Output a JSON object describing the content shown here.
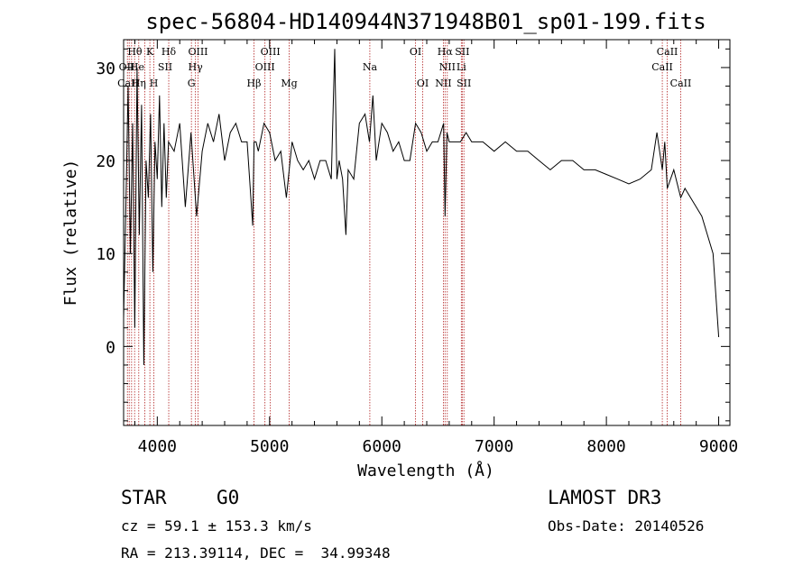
{
  "chart_data": {
    "type": "line",
    "title": "spec-56804-HD140944N371948B01_sp01-199.fits",
    "xlabel": "Wavelength (Å)",
    "ylabel": "Flux (relative)",
    "xlim": [
      3700,
      9100
    ],
    "ylim": [
      -8.5,
      33
    ],
    "xticks": [
      4000,
      5000,
      6000,
      7000,
      8000,
      9000
    ],
    "yticks": [
      0,
      10,
      20,
      30
    ],
    "yticklabels": [
      "0",
      "10",
      "20",
      "30"
    ],
    "grid": false,
    "series": [
      {
        "name": "flux",
        "x": [
          3700,
          3720,
          3740,
          3760,
          3780,
          3800,
          3820,
          3840,
          3860,
          3880,
          3900,
          3920,
          3940,
          3960,
          3980,
          4000,
          4020,
          4040,
          4060,
          4080,
          4100,
          4150,
          4200,
          4250,
          4300,
          4350,
          4400,
          4450,
          4500,
          4550,
          4600,
          4650,
          4700,
          4750,
          4800,
          4850,
          4862,
          4880,
          4900,
          4950,
          5000,
          5050,
          5100,
          5150,
          5200,
          5250,
          5300,
          5350,
          5400,
          5450,
          5500,
          5550,
          5580,
          5600,
          5620,
          5650,
          5680,
          5700,
          5750,
          5800,
          5850,
          5890,
          5920,
          5950,
          6000,
          6050,
          6100,
          6150,
          6200,
          6250,
          6300,
          6350,
          6400,
          6450,
          6500,
          6550,
          6563,
          6580,
          6600,
          6650,
          6700,
          6750,
          6800,
          6900,
          7000,
          7100,
          7200,
          7300,
          7400,
          7500,
          7600,
          7700,
          7800,
          7900,
          8000,
          8100,
          8200,
          8300,
          8400,
          8450,
          8498,
          8520,
          8542,
          8600,
          8662,
          8700,
          8750,
          8800,
          8850,
          8900,
          8950,
          9000
        ],
        "y": [
          3,
          15,
          28,
          10,
          24,
          2,
          30,
          12,
          26,
          -2,
          20,
          16,
          25,
          8,
          22,
          18,
          27,
          15,
          24,
          16,
          22,
          21,
          24,
          15,
          23,
          14,
          21,
          24,
          22,
          25,
          20,
          23,
          24,
          22,
          22,
          13,
          22,
          22,
          21,
          24,
          23,
          20,
          21,
          16,
          22,
          20,
          19,
          20,
          18,
          20,
          20,
          18,
          32,
          18,
          20,
          18,
          12,
          19,
          18,
          24,
          25,
          22,
          27,
          20,
          24,
          23,
          21,
          22,
          20,
          20,
          24,
          23,
          21,
          22,
          22,
          24,
          14,
          23,
          22,
          22,
          22,
          23,
          22,
          22,
          21,
          22,
          21,
          21,
          20,
          19,
          20,
          20,
          19,
          19,
          18.5,
          18,
          17.5,
          18,
          19,
          23,
          19,
          22,
          17,
          19,
          16,
          17,
          16,
          15,
          14,
          12,
          10,
          1
        ]
      }
    ],
    "lines_vline_x": [
      3734,
      3750,
      3771,
      3798,
      3835,
      3889,
      3934,
      3970,
      4102,
      4304,
      4340,
      4363,
      4861,
      4959,
      5007,
      5175,
      5893,
      6300,
      6364,
      6548,
      6563,
      6583,
      6708,
      6716,
      6731,
      8498,
      8542,
      8662
    ],
    "line_labels": [
      {
        "text": "Hθ",
        "x": 3800,
        "row": 1
      },
      {
        "text": "K",
        "x": 3934,
        "row": 1
      },
      {
        "text": "Hδ",
        "x": 4102,
        "row": 1
      },
      {
        "text": "OIII",
        "x": 4363,
        "row": 1
      },
      {
        "text": "OIII",
        "x": 5007,
        "row": 1
      },
      {
        "text": "OI",
        "x": 6300,
        "row": 1
      },
      {
        "text": "Hα",
        "x": 6563,
        "row": 1
      },
      {
        "text": "SII",
        "x": 6716,
        "row": 1
      },
      {
        "text": "CaII",
        "x": 8542,
        "row": 1
      },
      {
        "text": "OII",
        "x": 3728,
        "row": 2
      },
      {
        "text": "He",
        "x": 3820,
        "row": 2
      },
      {
        "text": "SII",
        "x": 4070,
        "row": 2
      },
      {
        "text": "Hγ",
        "x": 4340,
        "row": 2
      },
      {
        "text": "OIII",
        "x": 4959,
        "row": 2
      },
      {
        "text": "Na",
        "x": 5893,
        "row": 2
      },
      {
        "text": "NII",
        "x": 6583,
        "row": 2
      },
      {
        "text": "Li",
        "x": 6708,
        "row": 2
      },
      {
        "text": "CaII",
        "x": 8498,
        "row": 2
      },
      {
        "text": "CaII",
        "x": 3740,
        "row": 3
      },
      {
        "text": "Hη",
        "x": 3835,
        "row": 3
      },
      {
        "text": "H",
        "x": 3970,
        "row": 3
      },
      {
        "text": "G",
        "x": 4304,
        "row": 3
      },
      {
        "text": "Hβ",
        "x": 4861,
        "row": 3
      },
      {
        "text": "Mg",
        "x": 5175,
        "row": 3
      },
      {
        "text": "OI",
        "x": 6364,
        "row": 3
      },
      {
        "text": "NII",
        "x": 6548,
        "row": 3
      },
      {
        "text": "SII",
        "x": 6731,
        "row": 3
      },
      {
        "text": "CaII",
        "x": 8662,
        "row": 3
      }
    ]
  },
  "info": {
    "class": "STAR",
    "subclass": "G0",
    "survey": "LAMOST DR3",
    "cz": "cz = 59.1 ± 153.3 km/s",
    "obs_date": "Obs-Date: 20140526",
    "radec": "RA = 213.39114, DEC =  34.99348"
  }
}
